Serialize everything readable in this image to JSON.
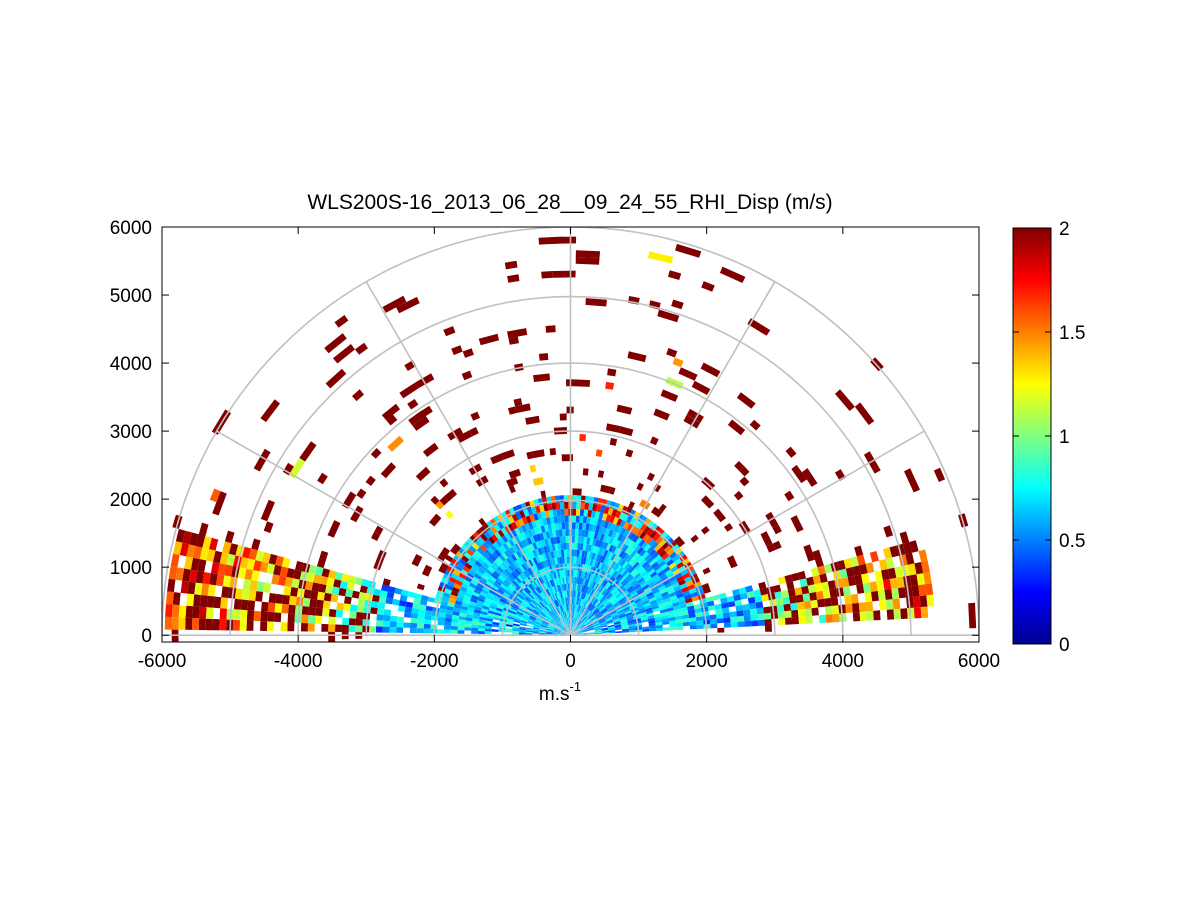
{
  "chart_data": {
    "type": "heatmap",
    "plot_style": "polar RHI scan (half-disc)",
    "title": "WLS200S-16_2013_06_28__09_24_55_RHI_Disp (m/s)",
    "xlabel": "m.s",
    "xlabel_superscript": "-1",
    "ylabel": "",
    "xlim": [
      -6000,
      6000
    ],
    "ylim": [
      -100,
      6000
    ],
    "x_ticks": [
      "-6000",
      "-4000",
      "-2000",
      "0",
      "2000",
      "4000",
      "6000"
    ],
    "y_ticks": [
      "0",
      "1000",
      "2000",
      "3000",
      "4000",
      "5000",
      "6000"
    ],
    "x_tick_values": [
      -6000,
      -4000,
      -2000,
      0,
      2000,
      4000,
      6000
    ],
    "y_tick_values": [
      0,
      1000,
      2000,
      3000,
      4000,
      5000,
      6000
    ],
    "polar_grid": {
      "range_rings": [
        1000,
        2000,
        3000,
        4000,
        5000,
        6000
      ],
      "azimuth_spokes_deg": [
        0,
        30,
        60,
        90,
        120,
        150,
        180
      ],
      "color": "#c0c0c0"
    },
    "scan": {
      "max_range": 6000,
      "range_gate": 100,
      "dense_low_angle_sectors": [
        {
          "from_deg": 2,
          "to_deg": 14,
          "max_range": 5300,
          "typical_value": 1.2
        },
        {
          "from_deg": 164,
          "to_deg": 179,
          "max_range": 5900,
          "typical_value": 1.3
        }
      ],
      "inner_core": {
        "max_range": 2000,
        "typical_value": 0.6
      },
      "far_field_value": 2.0
    },
    "colorbar": {
      "colormap": "jet",
      "clim": [
        0,
        2
      ],
      "ticks": [
        "0",
        "0.5",
        "1",
        "1.5",
        "2"
      ],
      "tick_values": [
        0,
        0.5,
        1,
        1.5,
        2
      ]
    }
  }
}
